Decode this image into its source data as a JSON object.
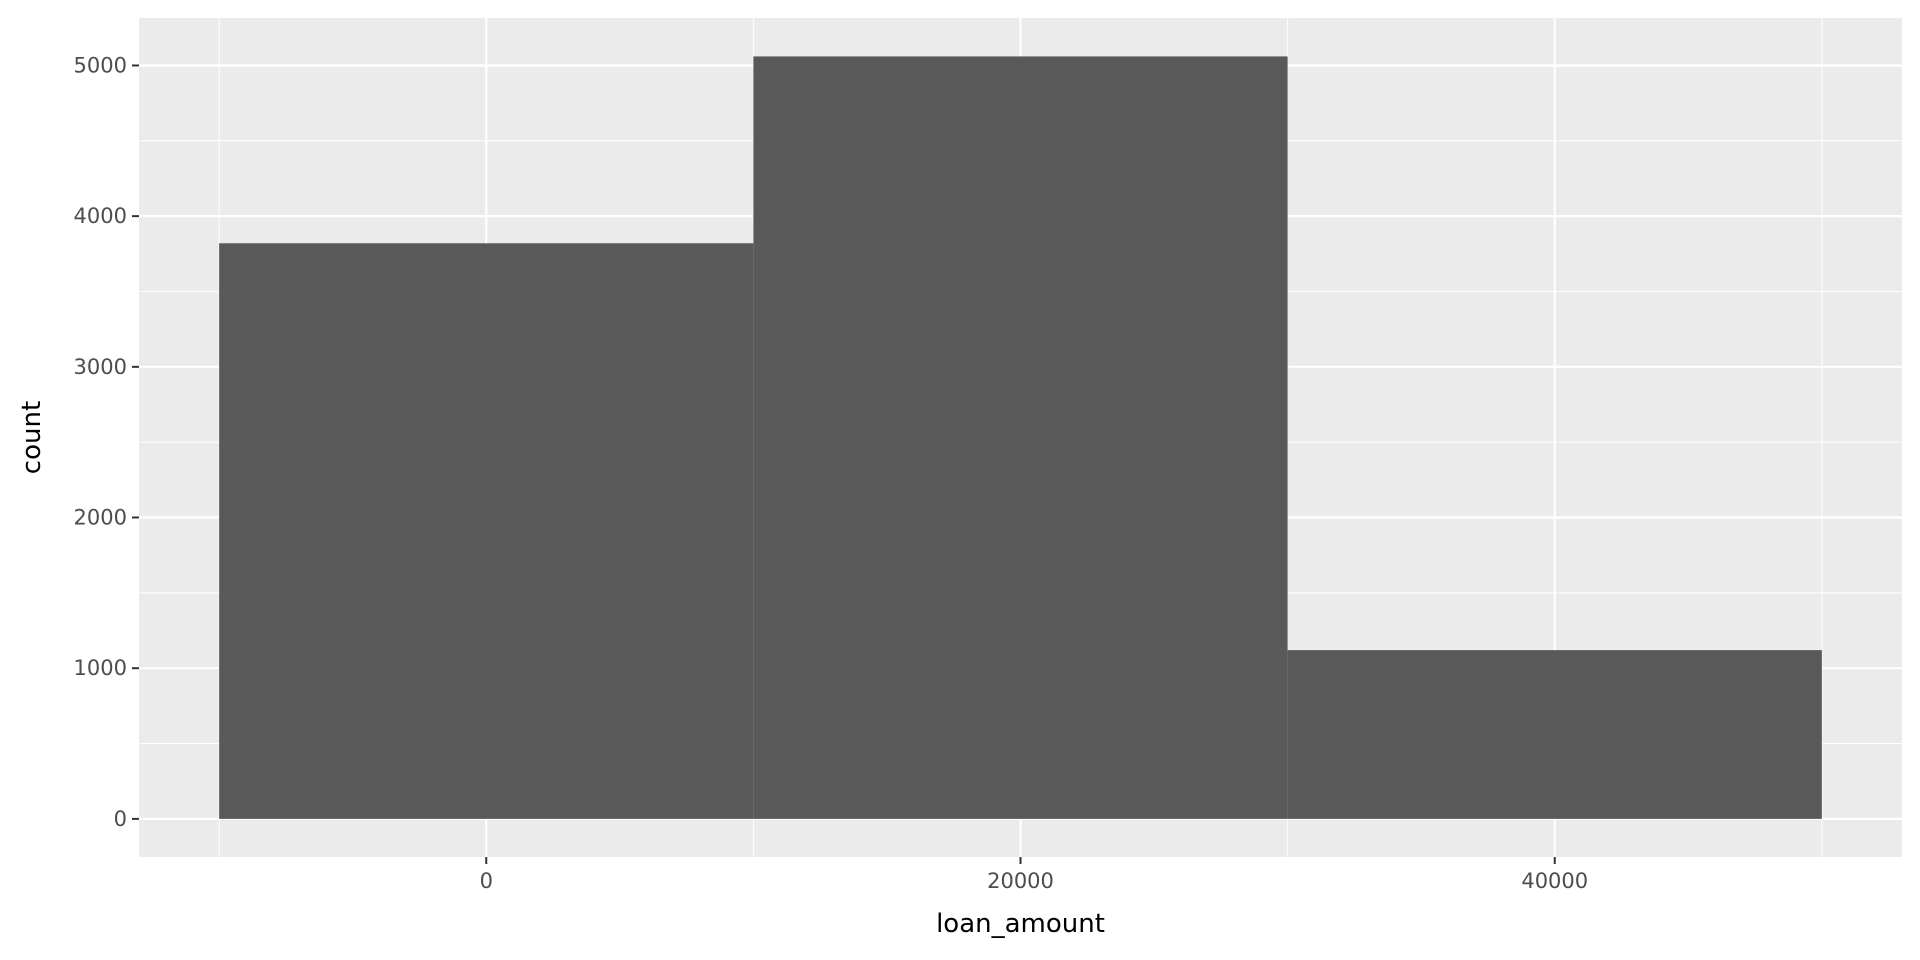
{
  "chart_data": {
    "type": "bar",
    "subtype": "histogram",
    "title": "",
    "xlabel": "loan_amount",
    "ylabel": "count",
    "bins": [
      {
        "x0": -10000,
        "x1": 10000,
        "count": 3820
      },
      {
        "x0": 10000,
        "x1": 30000,
        "count": 5060
      },
      {
        "x0": 30000,
        "x1": 50000,
        "count": 1120
      }
    ],
    "xlim": [
      -13000,
      53000
    ],
    "ylim": [
      -253,
      5315
    ],
    "x_ticks": [
      0,
      20000,
      40000
    ],
    "x_minor_ticks": [
      -10000,
      10000,
      30000,
      50000
    ],
    "y_ticks": [
      0,
      1000,
      2000,
      3000,
      4000,
      5000
    ],
    "y_minor_ticks": [
      500,
      1500,
      2500,
      3500,
      4500
    ],
    "grid": true,
    "legend": "none",
    "colors": {
      "bar_fill": "#595959",
      "panel_background": "#EBEBEB",
      "grid_line": "#FFFFFF",
      "tick_text": "#4D4D4D",
      "tick_mark": "#333333",
      "axis_title": "#000000"
    }
  }
}
